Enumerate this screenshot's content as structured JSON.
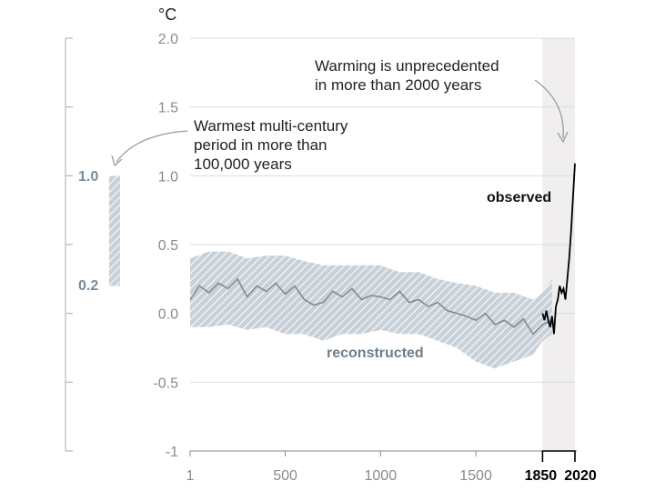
{
  "chart_data": {
    "type": "line",
    "unit": "°C",
    "ylim": [
      -1.0,
      2.0
    ],
    "xlim": [
      1,
      2020
    ],
    "y_ticks": [
      "2.0",
      "1.5",
      "1.0",
      "0.5",
      "0.0",
      "-0.5",
      "-1"
    ],
    "x_ticks": [
      "1",
      "500",
      "1000",
      "1500"
    ],
    "x_ticks_bold": [
      "1850",
      "2020"
    ],
    "grid": "horizontal",
    "shaded_period": [
      1850,
      2020
    ],
    "series": [
      {
        "name": "reconstructed",
        "color": "#7a8c99",
        "x": [
          1,
          50,
          100,
          150,
          200,
          250,
          300,
          350,
          400,
          450,
          500,
          550,
          600,
          650,
          700,
          750,
          800,
          850,
          900,
          950,
          1000,
          1050,
          1100,
          1150,
          1200,
          1250,
          1300,
          1350,
          1400,
          1450,
          1500,
          1550,
          1600,
          1650,
          1700,
          1750,
          1800,
          1850,
          1900
        ],
        "y": [
          0.1,
          0.2,
          0.15,
          0.22,
          0.18,
          0.25,
          0.12,
          0.2,
          0.16,
          0.22,
          0.14,
          0.2,
          0.1,
          0.06,
          0.08,
          0.16,
          0.12,
          0.18,
          0.1,
          0.13,
          0.12,
          0.1,
          0.16,
          0.08,
          0.1,
          0.05,
          0.08,
          0.02,
          0.0,
          -0.02,
          -0.05,
          0.0,
          -0.08,
          -0.05,
          -0.1,
          -0.04,
          -0.15,
          -0.08,
          -0.05
        ]
      },
      {
        "name": "observed",
        "color": "#000000",
        "x": [
          1850,
          1860,
          1870,
          1880,
          1890,
          1900,
          1910,
          1920,
          1930,
          1940,
          1950,
          1960,
          1970,
          1980,
          1990,
          2000,
          2010,
          2020
        ],
        "y": [
          0.0,
          -0.05,
          0.02,
          -0.05,
          -0.1,
          -0.02,
          -0.15,
          0.05,
          0.1,
          0.2,
          0.15,
          0.18,
          0.1,
          0.25,
          0.4,
          0.6,
          0.85,
          1.09
        ]
      }
    ],
    "uncertainty_band": {
      "label": "reconstructed",
      "x": [
        1,
        100,
        200,
        300,
        400,
        500,
        600,
        700,
        800,
        900,
        1000,
        1100,
        1200,
        1300,
        1400,
        1500,
        1600,
        1700,
        1800,
        1850,
        1900
      ],
      "lower": [
        -0.1,
        -0.1,
        -0.08,
        -0.12,
        -0.1,
        -0.15,
        -0.15,
        -0.2,
        -0.15,
        -0.15,
        -0.12,
        -0.15,
        -0.15,
        -0.2,
        -0.25,
        -0.35,
        -0.4,
        -0.35,
        -0.3,
        -0.2,
        -0.15
      ],
      "upper": [
        0.4,
        0.45,
        0.45,
        0.4,
        0.42,
        0.42,
        0.38,
        0.35,
        0.35,
        0.35,
        0.35,
        0.3,
        0.3,
        0.25,
        0.22,
        0.2,
        0.15,
        0.15,
        0.1,
        0.15,
        0.25
      ]
    },
    "annotations": {
      "observed": "observed",
      "reconstructed": "reconstructed",
      "unprecedented": [
        "Warming is unprecedented",
        "in more than 2000 years"
      ],
      "warmest": [
        "Warmest multi-century",
        "period in more than",
        "100,000 years"
      ]
    },
    "side_bar": {
      "range": [
        0.2,
        1.0
      ],
      "labels": [
        "1.0",
        "0.2"
      ]
    }
  }
}
